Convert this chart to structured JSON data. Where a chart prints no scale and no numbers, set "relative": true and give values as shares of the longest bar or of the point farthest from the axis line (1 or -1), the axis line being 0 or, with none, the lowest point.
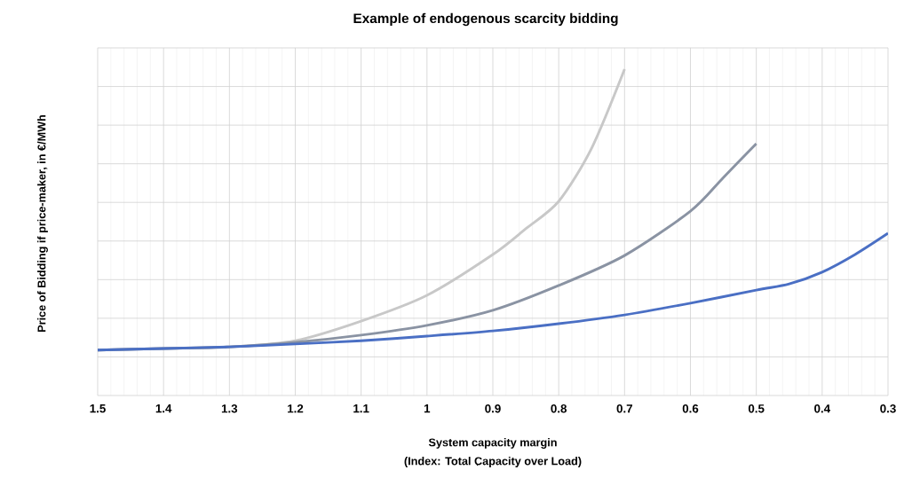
{
  "chart_data": {
    "type": "line",
    "title": "Example of endogenous scarcity bidding",
    "xlabel": "System capacity margin",
    "ylabel": "Price of Bidding if price-maker, in €/MWh",
    "annotations": [
      "(Index: Total Capacity over Load)"
    ],
    "relative": true,
    "grid": true,
    "marker": "none",
    "line_style": "solid",
    "xlim": [
      1.5,
      0.3
    ],
    "xticks": [
      1.5,
      1.4,
      1.3,
      1.2,
      1.1,
      1,
      0.9,
      0.8,
      0.7,
      0.6,
      0.5,
      0.4,
      0.3
    ],
    "series": [
      {
        "color": "#c8c8c8",
        "x": [
          1.5,
          1.4,
          1.3,
          1.2,
          1.1,
          1.0,
          0.9,
          0.85,
          0.8,
          0.75,
          0.7
        ],
        "values": [
          0.139,
          0.144,
          0.149,
          0.168,
          0.228,
          0.307,
          0.432,
          0.511,
          0.595,
          0.758,
          1.0
        ]
      },
      {
        "color": "#8a93a3",
        "x": [
          1.5,
          1.4,
          1.3,
          1.2,
          1.1,
          1.0,
          0.9,
          0.8,
          0.7,
          0.6,
          0.55,
          0.5
        ],
        "values": [
          0.139,
          0.144,
          0.149,
          0.163,
          0.185,
          0.215,
          0.261,
          0.337,
          0.429,
          0.565,
          0.668,
          0.772
        ]
      },
      {
        "color": "#4a6fc4",
        "x": [
          1.5,
          1.4,
          1.3,
          1.2,
          1.1,
          1.0,
          0.9,
          0.8,
          0.7,
          0.6,
          0.5,
          0.45,
          0.4,
          0.35,
          0.3
        ],
        "values": [
          0.139,
          0.144,
          0.149,
          0.158,
          0.168,
          0.182,
          0.198,
          0.22,
          0.247,
          0.283,
          0.323,
          0.342,
          0.378,
          0.432,
          0.497
        ]
      }
    ]
  }
}
